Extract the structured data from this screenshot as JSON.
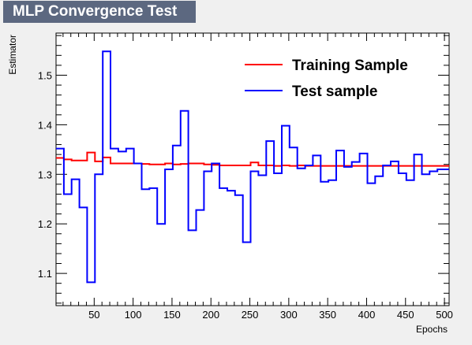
{
  "title": "MLP Convergence Test",
  "chart_data": {
    "type": "line",
    "title": "MLP Convergence Test",
    "xlabel": "Epochs",
    "ylabel": "Estimator",
    "xlim": [
      1,
      506
    ],
    "ylim": [
      1.035,
      1.585
    ],
    "x_ticks": [
      50,
      100,
      150,
      200,
      250,
      300,
      350,
      400,
      450,
      500
    ],
    "y_ticks": [
      1.1,
      1.2,
      1.3,
      1.4,
      1.5
    ],
    "y_tick_labels": [
      "1.1",
      "1.2",
      "1.3",
      "1.4",
      "1.5"
    ],
    "x_bin_edges": [
      1,
      11,
      21,
      31,
      41,
      51,
      61,
      71,
      81,
      91,
      101,
      111,
      121,
      131,
      141,
      151,
      161,
      171,
      181,
      191,
      201,
      211,
      221,
      231,
      241,
      251,
      261,
      271,
      281,
      291,
      301,
      311,
      321,
      331,
      341,
      351,
      361,
      371,
      381,
      391,
      401,
      411,
      421,
      431,
      441,
      451,
      461,
      471,
      481,
      491,
      501,
      506
    ],
    "legend_position": "top-right",
    "series": [
      {
        "name": "Training Sample",
        "color": "#ff0000",
        "values": [
          1.333,
          1.33,
          1.328,
          1.328,
          1.344,
          1.326,
          1.334,
          1.322,
          1.322,
          1.322,
          1.322,
          1.321,
          1.32,
          1.32,
          1.322,
          1.32,
          1.321,
          1.322,
          1.322,
          1.32,
          1.319,
          1.318,
          1.318,
          1.318,
          1.318,
          1.324,
          1.318,
          1.318,
          1.317,
          1.318,
          1.317,
          1.318,
          1.317,
          1.317,
          1.317,
          1.317,
          1.317,
          1.317,
          1.317,
          1.317,
          1.317,
          1.317,
          1.317,
          1.317,
          1.317,
          1.317,
          1.317,
          1.317,
          1.317,
          1.317,
          1.317
        ]
      },
      {
        "name": "Test sample",
        "color": "#0000ff",
        "values": [
          1.352,
          1.26,
          1.29,
          1.233,
          1.082,
          1.3,
          1.548,
          1.352,
          1.346,
          1.352,
          1.322,
          1.27,
          1.272,
          1.2,
          1.31,
          1.358,
          1.428,
          1.187,
          1.228,
          1.306,
          1.322,
          1.272,
          1.267,
          1.258,
          1.163,
          1.306,
          1.298,
          1.367,
          1.302,
          1.398,
          1.354,
          1.312,
          1.318,
          1.338,
          1.285,
          1.288,
          1.348,
          1.315,
          1.325,
          1.342,
          1.282,
          1.296,
          1.318,
          1.326,
          1.302,
          1.288,
          1.34,
          1.3,
          1.306,
          1.31,
          1.31
        ]
      }
    ]
  }
}
